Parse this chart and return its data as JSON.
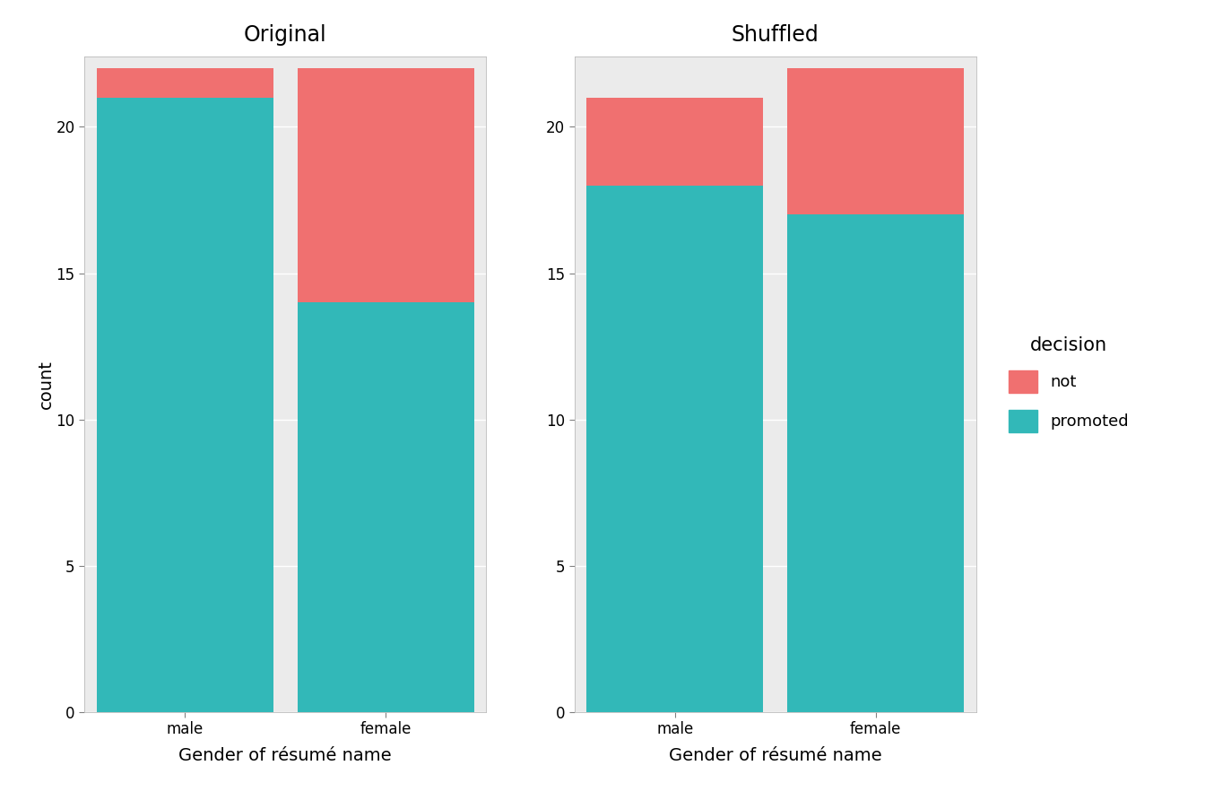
{
  "left_title": "Original",
  "right_title": "Shuffled",
  "xlabel": "Gender of résumé name",
  "ylabel": "count",
  "categories": [
    "male",
    "female"
  ],
  "original": {
    "promoted": [
      21,
      14
    ],
    "not": [
      1,
      8
    ]
  },
  "shuffled": {
    "promoted": [
      18,
      17
    ],
    "not": [
      3,
      5
    ]
  },
  "color_not": "#F07070",
  "color_promoted": "#32B8B8",
  "bar_width": 0.88,
  "ylim": [
    0,
    22.4
  ],
  "yticks": [
    0,
    5,
    10,
    15,
    20
  ],
  "legend_title": "decision",
  "legend_labels": [
    "not",
    "promoted"
  ],
  "panel_background": "#EBEBEB",
  "bar_bg_color": "#D9D9D9",
  "grid_color": "#FFFFFF",
  "title_fontsize": 17,
  "axis_label_fontsize": 14,
  "tick_fontsize": 12,
  "legend_fontsize": 13
}
